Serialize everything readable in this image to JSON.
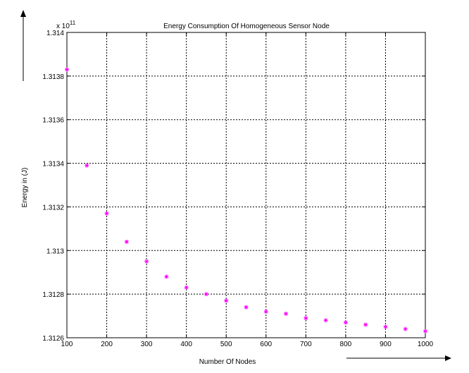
{
  "chart_data": {
    "type": "scatter",
    "title": "Energy Consumption Of Homogeneous Sensor Node",
    "xlabel": "Number Of Nodes",
    "ylabel": "Energy in (J)",
    "y_exponent_base": "x 10",
    "y_exponent_power": "11",
    "xlim": [
      100,
      1000
    ],
    "ylim": [
      1.3126,
      1.314
    ],
    "x_ticks": [
      100,
      200,
      300,
      400,
      500,
      600,
      700,
      800,
      900,
      1000
    ],
    "x_tick_labels": [
      "100",
      "200",
      "300",
      "400",
      "500",
      "600",
      "700",
      "800",
      "900",
      "1000"
    ],
    "y_ticks": [
      1.3126,
      1.3128,
      1.313,
      1.3132,
      1.3134,
      1.3136,
      1.3138,
      1.314
    ],
    "y_tick_labels": [
      "1.3126",
      "1.3128",
      "1.313",
      "1.3132",
      "1.3134",
      "1.3136",
      "1.3138",
      "1.314"
    ],
    "grid": true,
    "marker": "*",
    "marker_color": "#ff00ff",
    "x": [
      100,
      150,
      200,
      250,
      300,
      350,
      400,
      450,
      500,
      550,
      600,
      650,
      700,
      750,
      800,
      850,
      900,
      950,
      1000
    ],
    "y": [
      1.31383,
      1.31339,
      1.31317,
      1.31304,
      1.31295,
      1.31288,
      1.31283,
      1.3128,
      1.31277,
      1.31274,
      1.31272,
      1.31271,
      1.31269,
      1.31268,
      1.31267,
      1.31266,
      1.31265,
      1.31264,
      1.31263
    ]
  }
}
